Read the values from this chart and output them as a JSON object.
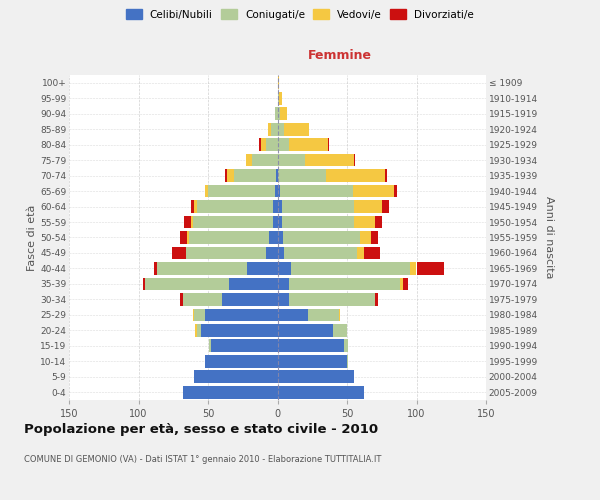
{
  "age_groups": [
    "0-4",
    "5-9",
    "10-14",
    "15-19",
    "20-24",
    "25-29",
    "30-34",
    "35-39",
    "40-44",
    "45-49",
    "50-54",
    "55-59",
    "60-64",
    "65-69",
    "70-74",
    "75-79",
    "80-84",
    "85-89",
    "90-94",
    "95-99",
    "100+"
  ],
  "birth_years": [
    "2005-2009",
    "2000-2004",
    "1995-1999",
    "1990-1994",
    "1985-1989",
    "1980-1984",
    "1975-1979",
    "1970-1974",
    "1965-1969",
    "1960-1964",
    "1955-1959",
    "1950-1954",
    "1945-1949",
    "1940-1944",
    "1935-1939",
    "1930-1934",
    "1925-1929",
    "1920-1924",
    "1915-1919",
    "1910-1914",
    "≤ 1909"
  ],
  "colors": {
    "celibe": "#4472c4",
    "coniugato": "#b3cc99",
    "vedovo": "#f5c842",
    "divorziato": "#cc1010"
  },
  "male": {
    "celibe": [
      68,
      60,
      52,
      48,
      55,
      52,
      40,
      35,
      22,
      8,
      6,
      3,
      3,
      2,
      1,
      0,
      0,
      0,
      0,
      0,
      0
    ],
    "coniugato": [
      0,
      0,
      0,
      1,
      3,
      8,
      28,
      60,
      65,
      58,
      58,
      58,
      55,
      48,
      30,
      18,
      8,
      5,
      2,
      0,
      0
    ],
    "vedovo": [
      0,
      0,
      0,
      0,
      1,
      1,
      0,
      0,
      0,
      0,
      1,
      1,
      2,
      2,
      5,
      5,
      4,
      2,
      0,
      0,
      0
    ],
    "divorziato": [
      0,
      0,
      0,
      0,
      0,
      0,
      2,
      2,
      2,
      10,
      5,
      5,
      2,
      0,
      2,
      0,
      1,
      0,
      0,
      0,
      0
    ]
  },
  "female": {
    "nubile": [
      62,
      55,
      50,
      48,
      40,
      22,
      8,
      8,
      10,
      5,
      4,
      3,
      3,
      2,
      0,
      0,
      0,
      0,
      0,
      0,
      0
    ],
    "coniugata": [
      0,
      0,
      1,
      3,
      10,
      22,
      62,
      80,
      85,
      52,
      55,
      52,
      52,
      52,
      35,
      20,
      8,
      5,
      2,
      1,
      0
    ],
    "vedova": [
      0,
      0,
      0,
      0,
      0,
      1,
      0,
      2,
      5,
      5,
      8,
      15,
      20,
      30,
      42,
      35,
      28,
      18,
      5,
      2,
      1
    ],
    "divorziata": [
      0,
      0,
      0,
      0,
      0,
      0,
      2,
      4,
      20,
      12,
      5,
      5,
      5,
      2,
      2,
      1,
      1,
      0,
      0,
      0,
      0
    ]
  },
  "xlim": 150,
  "title": "Popolazione per età, sesso e stato civile - 2010",
  "subtitle": "COMUNE DI GEMONIO (VA) - Dati ISTAT 1° gennaio 2010 - Elaborazione TUTTITALIA.IT",
  "ylabel_left": "Fasce di età",
  "ylabel_right": "Anni di nascita",
  "xlabel_right": "Femmine",
  "legend_labels": [
    "Celibi/Nubili",
    "Coniugati/e",
    "Vedovi/e",
    "Divorziati/e"
  ],
  "bg_color": "#f0f0f0",
  "plot_bg_color": "#ffffff"
}
